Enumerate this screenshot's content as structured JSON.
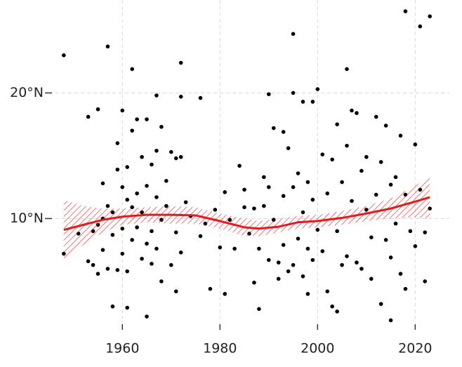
{
  "chart_data": {
    "type": "scatter",
    "x": [
      1948,
      1948,
      1951,
      1953,
      1953,
      1954,
      1954,
      1955,
      1955,
      1955,
      1956,
      1956,
      1956,
      1957,
      1957,
      1957,
      1958,
      1958,
      1958,
      1959,
      1959,
      1959,
      1960,
      1960,
      1960,
      1960,
      1961,
      1961,
      1961,
      1961,
      1962,
      1962,
      1962,
      1962,
      1963,
      1963,
      1963,
      1964,
      1964,
      1964,
      1965,
      1965,
      1965,
      1965,
      1966,
      1966,
      1966,
      1967,
      1967,
      1967,
      1967,
      1968,
      1968,
      1968,
      1969,
      1969,
      1970,
      1970,
      1971,
      1971,
      1971,
      1972,
      1972,
      1972,
      1972,
      1973,
      1974,
      1976,
      1976,
      1977,
      1978,
      1979,
      1980,
      1981,
      1981,
      1982,
      1983,
      1984,
      1985,
      1985,
      1986,
      1987,
      1987,
      1988,
      1988,
      1989,
      1989,
      1990,
      1990,
      1990,
      1991,
      1991,
      1992,
      1992,
      1993,
      1993,
      1993,
      1994,
      1994,
      1995,
      1995,
      1995,
      1995,
      1996,
      1996,
      1997,
      1997,
      1997,
      1998,
      1998,
      1998,
      1999,
      1999,
      1999,
      2000,
      2000,
      2001,
      2001,
      2002,
      2002,
      2003,
      2003,
      2004,
      2004,
      2004,
      2005,
      2005,
      2006,
      2006,
      2006,
      2007,
      2007,
      2008,
      2008,
      2009,
      2009,
      2010,
      2010,
      2011,
      2011,
      2012,
      2012,
      2013,
      2013,
      2014,
      2014,
      2015,
      2015,
      2015,
      2016,
      2016,
      2017,
      2017,
      2018,
      2018,
      2018,
      2019,
      2020,
      2020,
      2021,
      2021,
      2022,
      2022,
      2023,
      2023
    ],
    "values": [
      23.0,
      7.2,
      8.8,
      18.1,
      6.6,
      6.3,
      9.0,
      5.6,
      18.7,
      9.5,
      12.8,
      10.0,
      7.5,
      23.7,
      6.0,
      11.0,
      3.0,
      8.7,
      10.5,
      13.9,
      16.0,
      5.9,
      18.6,
      12.5,
      9.2,
      7.2,
      2.9,
      11.5,
      14.1,
      5.8,
      21.9,
      10.9,
      8.3,
      17.0,
      12.0,
      9.3,
      17.9,
      14.9,
      6.8,
      10.5,
      2.2,
      17.9,
      8.0,
      12.6,
      9.0,
      14.3,
      6.4,
      19.8,
      11.7,
      15.4,
      7.6,
      17.3,
      9.9,
      5.0,
      13.0,
      11.0,
      15.3,
      6.3,
      14.8,
      4.2,
      8.9,
      22.4,
      19.7,
      14.9,
      7.3,
      11.3,
      10.2,
      19.6,
      8.6,
      9.6,
      4.4,
      10.7,
      7.7,
      4.0,
      12.1,
      9.9,
      7.6,
      14.2,
      12.3,
      10.9,
      8.8,
      4.9,
      10.8,
      2.8,
      7.6,
      13.3,
      11.0,
      19.9,
      12.5,
      6.7,
      17.2,
      9.9,
      6.5,
      5.2,
      16.9,
      11.8,
      7.9,
      5.8,
      15.6,
      24.7,
      20.0,
      12.5,
      6.3,
      13.6,
      8.4,
      19.3,
      10.5,
      5.4,
      4.0,
      12.9,
      7.6,
      19.3,
      11.5,
      6.7,
      20.3,
      9.1,
      15.1,
      7.4,
      4.2,
      12.0,
      3.0,
      14.7,
      2.6,
      17.5,
      9.0,
      6.3,
      12.9,
      21.9,
      15.8,
      7.0,
      18.6,
      11.4,
      18.4,
      6.5,
      6.0,
      13.8,
      14.9,
      10.7,
      8.5,
      5.2,
      18.1,
      11.9,
      3.2,
      14.5,
      17.4,
      8.3,
      1.9,
      12.7,
      6.9,
      9.6,
      13.3,
      16.6,
      5.6,
      26.5,
      4.4,
      11.9,
      9.0,
      15.9,
      7.8,
      25.3,
      12.3,
      5.0,
      8.9,
      26.1,
      10.8
    ],
    "color": "#000000",
    "smooth": {
      "x": [
        1948,
        1952,
        1956,
        1960,
        1965,
        1970,
        1975,
        1980,
        1985,
        1988,
        1992,
        1996,
        2000,
        2005,
        2010,
        2015,
        2020,
        2023
      ],
      "values": [
        9.1,
        9.5,
        9.9,
        10.15,
        10.3,
        10.3,
        10.25,
        9.8,
        9.3,
        9.2,
        9.35,
        9.7,
        9.8,
        10.05,
        10.4,
        10.8,
        11.35,
        11.7
      ],
      "lower": [
        6.8,
        7.9,
        8.9,
        9.5,
        9.7,
        9.6,
        9.6,
        9.2,
        8.6,
        8.6,
        8.9,
        9.2,
        9.3,
        9.5,
        9.8,
        10.0,
        10.1,
        10.0
      ],
      "upper": [
        11.5,
        11.0,
        10.8,
        10.8,
        10.9,
        11.0,
        10.9,
        10.4,
        10.0,
        9.8,
        10.0,
        10.2,
        10.3,
        10.6,
        11.0,
        11.6,
        12.6,
        13.4
      ],
      "color": "#e41a1c"
    },
    "xlim": [
      1945,
      2027
    ],
    "ylim": [
      1.7,
      27.4
    ],
    "xticks": [
      1960,
      1980,
      2000,
      2020
    ],
    "yticks": [
      {
        "value": 10,
        "label": "10°N"
      },
      {
        "value": 20,
        "label": "20°N"
      }
    ],
    "grid": true
  }
}
